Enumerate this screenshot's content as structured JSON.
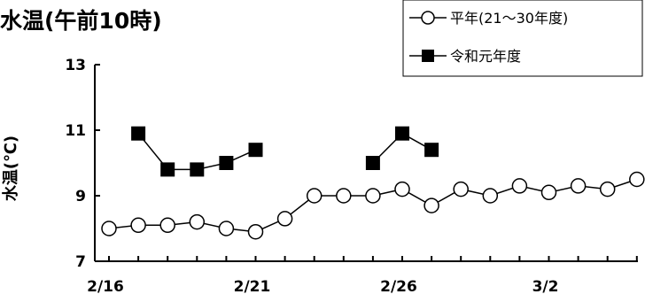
{
  "chart_data": {
    "type": "line",
    "title": "水温(午前10時)",
    "xlabel": "",
    "ylabel": "水温(℃)",
    "ylim": [
      7,
      13
    ],
    "yticks": [
      7,
      9,
      11,
      13
    ],
    "xtick_labels": [
      {
        "index": 0,
        "label": "2/16"
      },
      {
        "index": 5,
        "label": "2/21"
      },
      {
        "index": 10,
        "label": "2/26"
      },
      {
        "index": 15,
        "label": "3/2"
      }
    ],
    "x": [
      "2/16",
      "2/17",
      "2/18",
      "2/19",
      "2/20",
      "2/21",
      "2/22",
      "2/23",
      "2/24",
      "2/25",
      "2/26",
      "2/27",
      "2/28",
      "2/29",
      "3/1",
      "3/2",
      "3/3",
      "3/4",
      "3/5"
    ],
    "series": [
      {
        "name": "平年(21～30年度)",
        "marker": "open-circle",
        "color": "#000000",
        "values": [
          8.0,
          8.1,
          8.1,
          8.2,
          8.0,
          7.9,
          8.3,
          9.0,
          9.0,
          9.0,
          9.2,
          8.7,
          9.2,
          9.0,
          9.3,
          9.1,
          9.3,
          9.2,
          9.5
        ]
      },
      {
        "name": "令和元年度",
        "marker": "filled-square",
        "color": "#000000",
        "values": [
          null,
          10.9,
          9.8,
          9.8,
          10.0,
          10.4,
          null,
          null,
          null,
          10.0,
          10.9,
          10.4,
          null,
          null,
          null,
          null,
          null,
          null,
          null
        ]
      }
    ],
    "grid": false,
    "legend_position": "top-right"
  }
}
